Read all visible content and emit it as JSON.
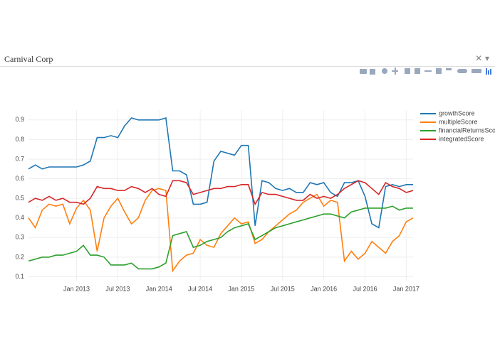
{
  "dropdown": {
    "selected": "Carnival Corp"
  },
  "chart_data": {
    "type": "line",
    "x": [
      "2012-06",
      "2012-07",
      "2012-08",
      "2012-09",
      "2012-10",
      "2012-11",
      "2012-12",
      "2013-01",
      "2013-02",
      "2013-03",
      "2013-04",
      "2013-05",
      "2013-06",
      "2013-07",
      "2013-08",
      "2013-09",
      "2013-10",
      "2013-11",
      "2013-12",
      "2014-01",
      "2014-02",
      "2014-03",
      "2014-04",
      "2014-05",
      "2014-06",
      "2014-07",
      "2014-08",
      "2014-09",
      "2014-10",
      "2014-11",
      "2014-12",
      "2015-01",
      "2015-02",
      "2015-03",
      "2015-04",
      "2015-05",
      "2015-06",
      "2015-07",
      "2015-08",
      "2015-09",
      "2015-10",
      "2015-11",
      "2015-12",
      "2016-01",
      "2016-02",
      "2016-03",
      "2016-04",
      "2016-05",
      "2016-06",
      "2016-07",
      "2016-08",
      "2016-09",
      "2016-10",
      "2016-11",
      "2016-12",
      "2017-01",
      "2017-02"
    ],
    "series": [
      {
        "name": "growthScore",
        "color": "#1f77b4",
        "values": [
          0.65,
          0.67,
          0.65,
          0.66,
          0.66,
          0.66,
          0.66,
          0.66,
          0.67,
          0.69,
          0.81,
          0.81,
          0.82,
          0.81,
          0.87,
          0.91,
          0.9,
          0.9,
          0.9,
          0.9,
          0.91,
          0.64,
          0.64,
          0.62,
          0.47,
          0.47,
          0.48,
          0.69,
          0.74,
          0.73,
          0.72,
          0.77,
          0.77,
          0.36,
          0.59,
          0.58,
          0.55,
          0.54,
          0.55,
          0.53,
          0.53,
          0.58,
          0.57,
          0.58,
          0.53,
          0.51,
          0.58,
          0.58,
          0.59,
          0.51,
          0.37,
          0.35,
          0.56,
          0.57,
          0.56,
          0.57,
          0.57
        ]
      },
      {
        "name": "multipleScore",
        "color": "#ff7f0e",
        "values": [
          0.4,
          0.35,
          0.44,
          0.47,
          0.46,
          0.47,
          0.37,
          0.45,
          0.49,
          0.44,
          0.23,
          0.4,
          0.46,
          0.5,
          0.43,
          0.37,
          0.4,
          0.49,
          0.54,
          0.55,
          0.54,
          0.13,
          0.18,
          0.21,
          0.22,
          0.29,
          0.26,
          0.25,
          0.32,
          0.36,
          0.4,
          0.37,
          0.38,
          0.27,
          0.29,
          0.33,
          0.36,
          0.39,
          0.42,
          0.44,
          0.48,
          0.5,
          0.52,
          0.46,
          0.49,
          0.48,
          0.18,
          0.23,
          0.19,
          0.22,
          0.28,
          0.25,
          0.22,
          0.28,
          0.31,
          0.38,
          0.4
        ]
      },
      {
        "name": "financialReturnsScore",
        "color": "#2ca02c",
        "values": [
          0.18,
          0.19,
          0.2,
          0.2,
          0.21,
          0.21,
          0.22,
          0.23,
          0.26,
          0.21,
          0.21,
          0.2,
          0.16,
          0.16,
          0.16,
          0.17,
          0.14,
          0.14,
          0.14,
          0.15,
          0.17,
          0.31,
          0.32,
          0.33,
          0.25,
          0.26,
          0.28,
          0.29,
          0.3,
          0.33,
          0.35,
          0.36,
          0.37,
          0.29,
          0.31,
          0.33,
          0.35,
          0.36,
          0.37,
          0.38,
          0.39,
          0.4,
          0.41,
          0.42,
          0.42,
          0.41,
          0.4,
          0.43,
          0.44,
          0.45,
          0.45,
          0.45,
          0.45,
          0.46,
          0.44,
          0.45,
          0.45
        ]
      },
      {
        "name": "integratedScore",
        "color": "#d62728",
        "values": [
          0.48,
          0.5,
          0.49,
          0.51,
          0.49,
          0.5,
          0.48,
          0.48,
          0.47,
          0.5,
          0.56,
          0.55,
          0.55,
          0.54,
          0.54,
          0.56,
          0.55,
          0.53,
          0.55,
          0.52,
          0.51,
          0.59,
          0.59,
          0.58,
          0.52,
          0.53,
          0.54,
          0.55,
          0.55,
          0.56,
          0.56,
          0.57,
          0.57,
          0.47,
          0.53,
          0.52,
          0.52,
          0.51,
          0.5,
          0.49,
          0.49,
          0.52,
          0.5,
          0.51,
          0.5,
          0.52,
          0.55,
          0.57,
          0.59,
          0.58,
          0.55,
          0.52,
          0.58,
          0.56,
          0.55,
          0.53,
          0.54
        ]
      }
    ],
    "xlim": [
      "2012-06",
      "2017-02"
    ],
    "xticks": [
      {
        "value": "2013-01",
        "label": "Jan 2013"
      },
      {
        "value": "2013-07",
        "label": "Jul 2013"
      },
      {
        "value": "2014-01",
        "label": "Jan 2014"
      },
      {
        "value": "2014-07",
        "label": "Jul 2014"
      },
      {
        "value": "2015-01",
        "label": "Jan 2015"
      },
      {
        "value": "2015-07",
        "label": "Jul 2015"
      },
      {
        "value": "2016-01",
        "label": "Jan 2016"
      },
      {
        "value": "2016-07",
        "label": "Jul 2016"
      },
      {
        "value": "2017-01",
        "label": "Jan 2017"
      }
    ],
    "ylim": [
      0.08,
      0.95
    ],
    "yticks": [
      0.1,
      0.2,
      0.3,
      0.4,
      0.5,
      0.6,
      0.7,
      0.8,
      0.9
    ],
    "grid": true,
    "legend": "top-right"
  }
}
